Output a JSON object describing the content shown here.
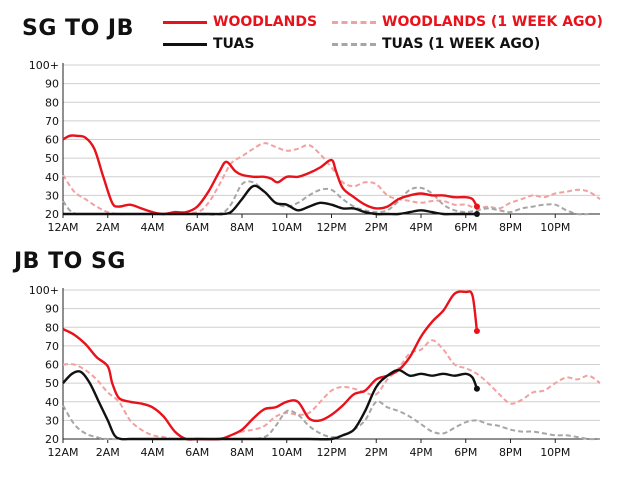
{
  "legend": [
    {
      "label": "WOODLANDS",
      "style": "solid",
      "color": "#e8121b"
    },
    {
      "label": "WOODLANDS (1 WEEK AGO)",
      "style": "dashed",
      "color": "#f2a0a0"
    },
    {
      "label": "TUAS",
      "style": "solid",
      "color": "#111111"
    },
    {
      "label": "TUAS (1 WEEK AGO)",
      "style": "dashed",
      "color": "#a6a6a6"
    }
  ],
  "chart_data": [
    {
      "type": "line",
      "title": "SG TO JB",
      "xlabel": "",
      "ylabel": "",
      "x_range_hours": [
        0,
        24
      ],
      "ylim": [
        20,
        100
      ],
      "yticks": [
        20,
        30,
        40,
        50,
        60,
        70,
        80,
        90,
        100
      ],
      "ytick_labels": [
        "20",
        "30",
        "40",
        "50",
        "60",
        "70",
        "80",
        "90",
        "100+"
      ],
      "xticks": [
        0,
        2,
        4,
        6,
        8,
        10,
        12,
        14,
        16,
        18,
        20,
        22
      ],
      "xtick_labels": [
        "12AM",
        "2AM",
        "4AM",
        "6AM",
        "8AM",
        "10AM",
        "12PM",
        "2PM",
        "4PM",
        "6PM",
        "8PM",
        "10PM"
      ],
      "series": [
        {
          "name": "WOODLANDS (1 WEEK AGO)",
          "color": "#f2a0a0",
          "dashed": true,
          "x": [
            0,
            0.5,
            1,
            1.5,
            2,
            2.5,
            3,
            4,
            5,
            6,
            6.5,
            7,
            7.5,
            8,
            8.5,
            9,
            9.5,
            10,
            10.5,
            11,
            11.5,
            12,
            12.5,
            13,
            13.5,
            14,
            14.5,
            15,
            15.5,
            16,
            16.5,
            17,
            17.5,
            18,
            18.5,
            19,
            19.5,
            20,
            20.5,
            21,
            21.5,
            22,
            22.5,
            23,
            23.5,
            24
          ],
          "y": [
            41,
            32,
            28,
            24,
            21,
            20,
            20,
            20,
            20,
            21,
            26,
            36,
            47,
            51,
            55,
            58,
            56,
            54,
            55,
            57,
            52,
            45,
            37,
            35,
            37,
            36,
            30,
            28,
            27,
            26,
            27,
            27,
            25,
            25,
            23,
            24,
            23,
            26,
            28,
            30,
            29,
            31,
            32,
            33,
            32,
            28
          ]
        },
        {
          "name": "TUAS (1 WEEK AGO)",
          "color": "#a6a6a6",
          "dashed": true,
          "x": [
            0,
            0.3,
            0.6,
            1,
            2,
            4,
            6,
            7,
            7.5,
            8,
            8.5,
            9,
            9.5,
            10,
            10.5,
            11,
            11.5,
            12,
            12.5,
            13,
            13.5,
            14,
            14.5,
            15,
            15.5,
            16,
            16.5,
            17,
            17.5,
            18,
            18.5,
            19,
            19.5,
            20,
            20.5,
            21,
            21.5,
            22,
            22.5,
            23,
            23.5
          ],
          "y": [
            27,
            22,
            20,
            20,
            20,
            20,
            20,
            20,
            25,
            36,
            37,
            32,
            26,
            24,
            26,
            30,
            33,
            33,
            28,
            24,
            22,
            21,
            22,
            27,
            33,
            34,
            31,
            25,
            22,
            21,
            22,
            23,
            22,
            21,
            23,
            24,
            25,
            25,
            22,
            20,
            20
          ]
        },
        {
          "name": "WOODLANDS",
          "color": "#e8121b",
          "dashed": false,
          "x": [
            0,
            0.3,
            0.6,
            1,
            1.4,
            1.8,
            2.2,
            2.5,
            3,
            3.5,
            4,
            4.5,
            5,
            5.5,
            6,
            6.5,
            7,
            7.3,
            7.7,
            8,
            8.5,
            9,
            9.3,
            9.6,
            10,
            10.5,
            11,
            11.5,
            12,
            12.2,
            12.5,
            13,
            13.5,
            14,
            14.5,
            15,
            15.5,
            16,
            16.5,
            17,
            17.5,
            18,
            18.3,
            18.5
          ],
          "y": [
            60,
            62,
            62,
            61,
            55,
            40,
            26,
            24,
            25,
            23,
            21,
            20,
            21,
            21,
            24,
            32,
            43,
            48,
            43,
            41,
            40,
            40,
            39,
            37,
            40,
            40,
            42,
            45,
            49,
            43,
            34,
            29,
            25,
            23,
            24,
            28,
            30,
            31,
            30,
            30,
            29,
            29,
            28,
            24
          ]
        },
        {
          "name": "TUAS",
          "color": "#111111",
          "dashed": false,
          "x": [
            0,
            6.5,
            7,
            7.5,
            8,
            8.5,
            9,
            9.5,
            10,
            10.5,
            11,
            11.5,
            12,
            12.5,
            13,
            13.5,
            14,
            14.5,
            15,
            15.5,
            16,
            16.5,
            17,
            17.5,
            18,
            18.5
          ],
          "y": [
            20,
            20,
            20,
            21,
            28,
            35,
            32,
            26,
            25,
            22,
            24,
            26,
            25,
            23,
            23,
            21,
            20,
            20,
            20,
            21,
            22,
            21,
            20,
            20,
            20,
            20
          ]
        }
      ],
      "current_points": [
        {
          "series": "WOODLANDS",
          "x": 18.5,
          "y": 24
        },
        {
          "series": "TUAS",
          "x": 18.5,
          "y": 20
        }
      ]
    },
    {
      "type": "line",
      "title": "JB TO SG",
      "xlabel": "",
      "ylabel": "",
      "x_range_hours": [
        0,
        24
      ],
      "ylim": [
        20,
        100
      ],
      "yticks": [
        20,
        30,
        40,
        50,
        60,
        70,
        80,
        90,
        100
      ],
      "ytick_labels": [
        "20",
        "30",
        "40",
        "50",
        "60",
        "70",
        "80",
        "90",
        "100+"
      ],
      "xticks": [
        0,
        2,
        4,
        6,
        8,
        10,
        12,
        14,
        16,
        18,
        20,
        22
      ],
      "xtick_labels": [
        "12AM",
        "2AM",
        "4AM",
        "6AM",
        "8AM",
        "10AM",
        "12PM",
        "2PM",
        "4PM",
        "6PM",
        "8PM",
        "10PM"
      ],
      "series": [
        {
          "name": "WOODLANDS (1 WEEK AGO)",
          "color": "#f2a0a0",
          "dashed": true,
          "x": [
            0,
            0.5,
            1,
            1.5,
            2,
            2.5,
            3,
            3.5,
            4,
            4.5,
            5,
            6,
            7,
            7.5,
            8,
            8.5,
            9,
            9.5,
            10,
            10.5,
            11,
            11.5,
            12,
            12.5,
            13,
            13.5,
            14,
            14.5,
            15,
            15.5,
            16,
            16.5,
            17,
            17.5,
            18,
            18.5,
            19,
            19.5,
            20,
            20.5,
            21,
            21.5,
            22,
            22.5,
            23,
            23.5,
            24
          ],
          "y": [
            60,
            60,
            57,
            52,
            45,
            40,
            30,
            25,
            22,
            21,
            20,
            20,
            20,
            22,
            24,
            25,
            27,
            32,
            34,
            33,
            34,
            40,
            46,
            48,
            47,
            45,
            44,
            52,
            58,
            66,
            68,
            73,
            68,
            60,
            58,
            55,
            50,
            44,
            39,
            41,
            45,
            46,
            50,
            53,
            52,
            54,
            50
          ]
        },
        {
          "name": "TUAS (1 WEEK AGO)",
          "color": "#a6a6a6",
          "dashed": true,
          "x": [
            0,
            0.5,
            1,
            1.5,
            2,
            3,
            4,
            6,
            8,
            9,
            9.5,
            10,
            10.5,
            11,
            11.5,
            12,
            12.5,
            13,
            13.5,
            14,
            14.5,
            15,
            15.5,
            16,
            16.5,
            17,
            17.5,
            18,
            18.5,
            19,
            19.5,
            20,
            20.5,
            21,
            21.5,
            22,
            22.5,
            23,
            23.5,
            24
          ],
          "y": [
            38,
            28,
            23,
            21,
            20,
            20,
            20,
            20,
            20,
            21,
            27,
            35,
            33,
            27,
            23,
            21,
            22,
            25,
            30,
            40,
            37,
            35,
            32,
            28,
            24,
            23,
            26,
            29,
            30,
            28,
            27,
            25,
            24,
            24,
            23,
            22,
            22,
            21,
            20,
            20
          ]
        },
        {
          "name": "WOODLANDS",
          "color": "#e8121b",
          "dashed": false,
          "x": [
            0,
            0.5,
            1,
            1.5,
            2,
            2.2,
            2.5,
            3,
            3.5,
            4,
            4.5,
            5,
            5.5,
            6,
            7,
            7.5,
            8,
            8.5,
            9,
            9.5,
            10,
            10.5,
            11,
            11.5,
            12,
            12.5,
            13,
            13.5,
            14,
            14.5,
            15,
            15.5,
            16,
            16.5,
            17,
            17.5,
            18,
            18.3,
            18.5
          ],
          "y": [
            79,
            76,
            71,
            64,
            59,
            50,
            42,
            40,
            39,
            37,
            32,
            24,
            20,
            20,
            20,
            22,
            25,
            31,
            36,
            37,
            40,
            40,
            31,
            30,
            33,
            38,
            44,
            46,
            52,
            54,
            57,
            64,
            75,
            83,
            89,
            98,
            99,
            97,
            78
          ]
        },
        {
          "name": "TUAS",
          "color": "#111111",
          "dashed": false,
          "x": [
            0,
            0.4,
            0.8,
            1.2,
            1.6,
            2,
            2.3,
            2.6,
            3,
            4,
            6,
            8,
            10,
            11,
            12,
            12.5,
            13,
            13.5,
            14,
            14.5,
            15,
            15.5,
            16,
            16.5,
            17,
            17.5,
            18,
            18.3,
            18.5
          ],
          "y": [
            50,
            55,
            56,
            50,
            40,
            30,
            22,
            20,
            20,
            20,
            20,
            20,
            20,
            20,
            20,
            22,
            25,
            35,
            48,
            54,
            57,
            54,
            55,
            54,
            55,
            54,
            55,
            53,
            47
          ]
        }
      ],
      "current_points": [
        {
          "series": "WOODLANDS",
          "x": 18.5,
          "y": 78
        },
        {
          "series": "TUAS",
          "x": 18.5,
          "y": 47
        }
      ]
    }
  ]
}
